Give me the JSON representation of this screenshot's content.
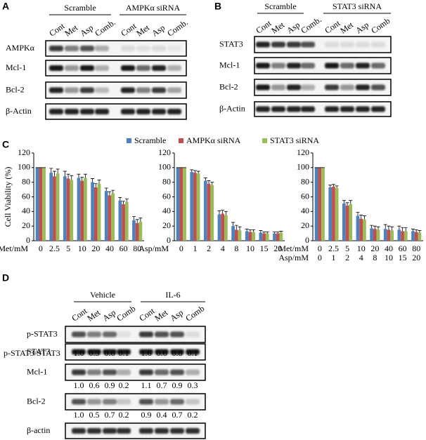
{
  "panel_labels": [
    "A",
    "B",
    "C",
    "D"
  ],
  "panel_a": {
    "groups": [
      "Scramble",
      "AMPKα siRNA"
    ],
    "lanes": [
      "Cont",
      "Met",
      "Asp",
      "Comb.",
      "Cont",
      "Met",
      "Asp",
      "Comb."
    ],
    "rows": [
      "AMPKα",
      "Mcl-1",
      "Bcl-2",
      "β-Actin"
    ]
  },
  "panel_b": {
    "groups": [
      "Scramble",
      "STAT3 siRNA"
    ],
    "lanes": [
      "Cont",
      "Met",
      "Asp",
      "Comb.",
      "Cont",
      "Met",
      "Asp",
      "Comb"
    ],
    "rows": [
      "STAT3",
      "Mcl-1",
      "Bcl-2",
      "β-Actin"
    ]
  },
  "chart_data": [
    {
      "type": "bar",
      "y_label": "Cell Viability (%)",
      "x_label": "Met/mM",
      "categories": [
        "0",
        "2.5",
        "5",
        "10",
        "20",
        "40",
        "60",
        "80"
      ],
      "ylim": [
        0,
        120
      ],
      "yticks": [
        0,
        20,
        40,
        60,
        80,
        100,
        120
      ],
      "series": [
        {
          "name": "Scramble",
          "color": "#4f81bd",
          "values": [
            100,
            93,
            88,
            86,
            80,
            68,
            55,
            28
          ],
          "errors": [
            0,
            6,
            7,
            5,
            5,
            4,
            4,
            5
          ]
        },
        {
          "name": "AMPKα siRNA",
          "color": "#c0504d",
          "values": [
            100,
            88,
            85,
            82,
            73,
            62,
            50,
            24
          ],
          "errors": [
            0,
            7,
            6,
            5,
            5,
            5,
            4,
            5
          ]
        },
        {
          "name": "STAT3 siRNA",
          "color": "#9bbb59",
          "values": [
            100,
            92,
            83,
            86,
            78,
            65,
            53,
            26
          ],
          "errors": [
            0,
            6,
            6,
            5,
            5,
            4,
            4,
            5
          ]
        }
      ]
    },
    {
      "type": "bar",
      "x_label": "Asp/mM",
      "categories": [
        "0",
        "1",
        "2",
        "4",
        "8",
        "10",
        "15",
        "20"
      ],
      "ylim": [
        0,
        120
      ],
      "yticks": [
        0,
        20,
        40,
        60,
        80,
        100,
        120
      ],
      "series": [
        {
          "name": "Scramble",
          "color": "#4f81bd",
          "values": [
            100,
            94,
            82,
            36,
            20,
            13,
            11,
            10
          ],
          "errors": [
            0,
            3,
            4,
            5,
            5,
            3,
            3,
            2
          ]
        },
        {
          "name": "AMPKα siRNA",
          "color": "#c0504d",
          "values": [
            100,
            93,
            78,
            37,
            15,
            12,
            10,
            10
          ],
          "errors": [
            0,
            3,
            4,
            5,
            6,
            3,
            2,
            2
          ]
        },
        {
          "name": "STAT3 siRNA",
          "color": "#9bbb59",
          "values": [
            100,
            92,
            76,
            35,
            14,
            12,
            10,
            11
          ],
          "errors": [
            0,
            3,
            4,
            5,
            5,
            3,
            2,
            2
          ]
        }
      ]
    },
    {
      "type": "bar",
      "x_labels": [
        "Met/mM",
        "Asp/mM"
      ],
      "categories": [
        "0",
        "2.5",
        "5",
        "10",
        "20",
        "40",
        "60",
        "80"
      ],
      "categories_2": [
        "0",
        "1",
        "2",
        "4",
        "8",
        "10",
        "15",
        "20"
      ],
      "ylim": [
        0,
        120
      ],
      "yticks": [
        0,
        20,
        40,
        60,
        80,
        100,
        120
      ],
      "series": [
        {
          "name": "Scramble",
          "color": "#4f81bd",
          "values": [
            100,
            73,
            51,
            34,
            17,
            16,
            15,
            13
          ],
          "errors": [
            0,
            3,
            4,
            5,
            4,
            6,
            5,
            3
          ]
        },
        {
          "name": "AMPKα siRNA",
          "color": "#c0504d",
          "values": [
            100,
            74,
            48,
            30,
            16,
            15,
            13,
            12
          ],
          "errors": [
            0,
            3,
            4,
            5,
            4,
            5,
            5,
            3
          ]
        },
        {
          "name": "STAT3 siRNA",
          "color": "#9bbb59",
          "values": [
            100,
            72,
            50,
            29,
            15,
            14,
            13,
            11
          ],
          "errors": [
            0,
            3,
            5,
            5,
            4,
            5,
            5,
            3
          ]
        }
      ]
    }
  ],
  "panel_d": {
    "groups": [
      "Vehicle",
      "IL-6"
    ],
    "lanes": [
      "Cont",
      "Met",
      "Asp",
      "Comb",
      "Cont",
      "Met",
      "Asp",
      "Comb"
    ],
    "rows": [
      "p-STAT3",
      "STAT3",
      "Mcl-1",
      "Bcl-2",
      "β-actin"
    ],
    "quant": [
      {
        "label": "p-STAT3/STAT3",
        "values": [
          "1.0",
          "0.3",
          "0.6",
          "0.1",
          "1.6",
          "0.6",
          "0.8",
          "0.1"
        ]
      },
      {
        "values": [
          "1.0",
          "0.6",
          "0.9",
          "0.2",
          "1.1",
          "0.7",
          "0.9",
          "0.3"
        ]
      },
      {
        "values": [
          "1.0",
          "0.5",
          "0.7",
          "0.2",
          "0.9",
          "0.4",
          "0.7",
          "0.2"
        ]
      }
    ]
  }
}
